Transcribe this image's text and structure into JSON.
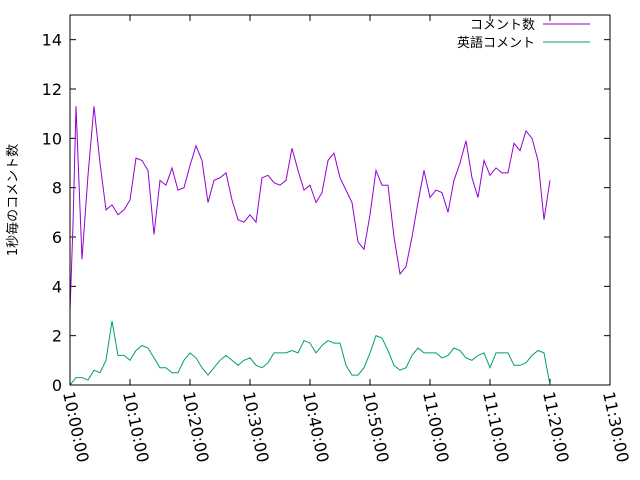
{
  "chart_data": {
    "type": "line",
    "ylabel": "1秒毎のコメント数",
    "xlabel": "",
    "title": "",
    "ylim": [
      0,
      15
    ],
    "xlim": [
      "10:00:00",
      "11:30:00"
    ],
    "yticks": [
      0,
      2,
      4,
      6,
      8,
      10,
      12,
      14
    ],
    "xticks": [
      "10:00:00",
      "10:10:00",
      "10:20:00",
      "10:30:00",
      "10:40:00",
      "10:50:00",
      "11:00:00",
      "11:10:00",
      "11:20:00",
      "11:30:00"
    ],
    "legend_position": "top-right",
    "grid": false,
    "series": [
      {
        "name": "コメント数",
        "color": "#9400d3",
        "x": [
          "10:00:00",
          "10:00:30",
          "10:01:00",
          "10:02:00",
          "10:03:00",
          "10:04:00",
          "10:05:00",
          "10:06:00",
          "10:07:00",
          "10:08:00",
          "10:09:00",
          "10:10:00",
          "10:11:00",
          "10:12:00",
          "10:13:00",
          "10:14:00",
          "10:15:00",
          "10:16:00",
          "10:17:00",
          "10:18:00",
          "10:19:00",
          "10:20:00",
          "10:21:00",
          "10:22:00",
          "10:23:00",
          "10:24:00",
          "10:25:00",
          "10:26:00",
          "10:27:00",
          "10:28:00",
          "10:29:00",
          "10:30:00",
          "10:31:00",
          "10:32:00",
          "10:33:00",
          "10:34:00",
          "10:35:00",
          "10:36:00",
          "10:37:00",
          "10:38:00",
          "10:39:00",
          "10:40:00",
          "10:41:00",
          "10:42:00",
          "10:43:00",
          "10:44:00",
          "10:45:00",
          "10:46:00",
          "10:47:00",
          "10:48:00",
          "10:49:00",
          "10:50:00",
          "10:51:00",
          "10:52:00",
          "10:53:00",
          "10:54:00",
          "10:55:00",
          "10:56:00",
          "10:57:00",
          "10:58:00",
          "10:59:00",
          "11:00:00",
          "11:01:00",
          "11:02:00",
          "11:03:00",
          "11:04:00",
          "11:05:00",
          "11:06:00",
          "11:07:00",
          "11:08:00",
          "11:09:00",
          "11:10:00",
          "11:11:00",
          "11:12:00",
          "11:13:00",
          "11:14:00",
          "11:15:00",
          "11:16:00",
          "11:17:00",
          "11:18:00",
          "11:19:00",
          "11:20:00"
        ],
        "values": [
          3.0,
          6.5,
          11.3,
          5.1,
          8.5,
          11.3,
          9.0,
          7.1,
          7.3,
          6.9,
          7.1,
          7.5,
          9.2,
          9.1,
          8.7,
          6.1,
          8.3,
          8.1,
          8.8,
          7.9,
          8.0,
          8.9,
          9.7,
          9.1,
          7.4,
          8.3,
          8.4,
          8.6,
          7.5,
          6.7,
          6.6,
          6.9,
          6.6,
          8.4,
          8.5,
          8.2,
          8.1,
          8.3,
          9.6,
          8.7,
          7.9,
          8.1,
          7.4,
          7.8,
          9.1,
          9.4,
          8.4,
          7.9,
          7.4,
          5.8,
          5.5,
          6.9,
          8.7,
          8.1,
          8.1,
          6.0,
          4.5,
          4.8,
          6.0,
          7.4,
          8.7,
          7.6,
          7.9,
          7.8,
          7.0,
          8.3,
          9.0,
          9.9,
          8.4,
          7.6,
          9.1,
          8.5,
          8.8,
          8.6,
          8.6,
          9.8,
          9.5,
          10.3,
          10.0,
          9.1,
          6.7,
          8.3
        ]
      },
      {
        "name": "英語コメント",
        "color": "#009e73",
        "x": [
          "10:00:00",
          "10:01:00",
          "10:02:00",
          "10:03:00",
          "10:04:00",
          "10:05:00",
          "10:06:00",
          "10:07:00",
          "10:08:00",
          "10:09:00",
          "10:10:00",
          "10:11:00",
          "10:12:00",
          "10:13:00",
          "10:14:00",
          "10:15:00",
          "10:16:00",
          "10:17:00",
          "10:18:00",
          "10:19:00",
          "10:20:00",
          "10:21:00",
          "10:22:00",
          "10:23:00",
          "10:24:00",
          "10:25:00",
          "10:26:00",
          "10:27:00",
          "10:28:00",
          "10:29:00",
          "10:30:00",
          "10:31:00",
          "10:32:00",
          "10:33:00",
          "10:34:00",
          "10:35:00",
          "10:36:00",
          "10:37:00",
          "10:38:00",
          "10:39:00",
          "10:40:00",
          "10:41:00",
          "10:42:00",
          "10:43:00",
          "10:44:00",
          "10:45:00",
          "10:46:00",
          "10:47:00",
          "10:48:00",
          "10:49:00",
          "10:50:00",
          "10:51:00",
          "10:52:00",
          "10:53:00",
          "10:54:00",
          "10:55:00",
          "10:56:00",
          "10:57:00",
          "10:58:00",
          "10:59:00",
          "11:00:00",
          "11:01:00",
          "11:02:00",
          "11:03:00",
          "11:04:00",
          "11:05:00",
          "11:06:00",
          "11:07:00",
          "11:08:00",
          "11:09:00",
          "11:10:00",
          "11:11:00",
          "11:12:00",
          "11:13:00",
          "11:14:00",
          "11:15:00",
          "11:16:00",
          "11:17:00",
          "11:18:00",
          "11:19:00",
          "11:20:00"
        ],
        "values": [
          0.0,
          0.3,
          0.3,
          0.2,
          0.6,
          0.5,
          1.0,
          2.6,
          1.2,
          1.2,
          1.0,
          1.4,
          1.6,
          1.5,
          1.1,
          0.7,
          0.7,
          0.5,
          0.5,
          1.0,
          1.3,
          1.1,
          0.7,
          0.4,
          0.7,
          1.0,
          1.2,
          1.0,
          0.8,
          1.0,
          1.1,
          0.8,
          0.7,
          0.9,
          1.3,
          1.3,
          1.3,
          1.4,
          1.3,
          1.8,
          1.7,
          1.3,
          1.6,
          1.8,
          1.7,
          1.7,
          0.8,
          0.4,
          0.4,
          0.7,
          1.3,
          2.0,
          1.9,
          1.4,
          0.8,
          0.6,
          0.7,
          1.2,
          1.5,
          1.3,
          1.3,
          1.3,
          1.1,
          1.2,
          1.5,
          1.4,
          1.1,
          1.0,
          1.2,
          1.3,
          0.7,
          1.3,
          1.3,
          1.3,
          0.8,
          0.8,
          0.9,
          1.2,
          1.4,
          1.3,
          0.0
        ]
      }
    ]
  }
}
